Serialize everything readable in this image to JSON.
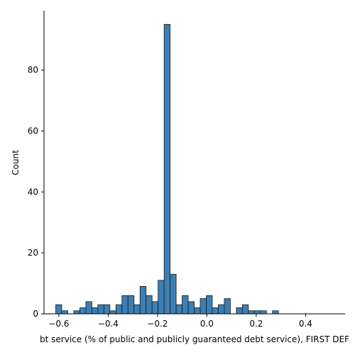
{
  "chart_data": {
    "type": "bar",
    "subtype": "histogram",
    "xlabel": "bt service (% of public and publicly guaranteed debt service), FIRST DEF",
    "ylabel": "Count",
    "xlim": [
      -0.66,
      0.56
    ],
    "ylim": [
      0,
      99.5
    ],
    "xticks": [
      -0.6,
      -0.4,
      -0.2,
      0.0,
      0.2,
      0.4
    ],
    "xtick_labels": [
      "−0.6",
      "−0.4",
      "−0.2",
      "0.0",
      "0.2",
      "0.4"
    ],
    "yticks": [
      0,
      20,
      40,
      60,
      80
    ],
    "ytick_labels": [
      "0",
      "20",
      "40",
      "60",
      "80"
    ],
    "grid": false,
    "spines": [
      "left",
      "bottom"
    ],
    "bar_color": "#3b7fb5",
    "edge_color": "#1a1a1a",
    "bin_width": 0.0244,
    "bins": [
      {
        "x0": -0.6125,
        "count": 3
      },
      {
        "x0": -0.5881,
        "count": 1
      },
      {
        "x0": -0.5637,
        "count": 0
      },
      {
        "x0": -0.5393,
        "count": 1
      },
      {
        "x0": -0.5149,
        "count": 2
      },
      {
        "x0": -0.4905,
        "count": 4
      },
      {
        "x0": -0.4661,
        "count": 2
      },
      {
        "x0": -0.4417,
        "count": 3
      },
      {
        "x0": -0.4173,
        "count": 3
      },
      {
        "x0": -0.3929,
        "count": 1
      },
      {
        "x0": -0.3685,
        "count": 3
      },
      {
        "x0": -0.3441,
        "count": 6
      },
      {
        "x0": -0.3197,
        "count": 6
      },
      {
        "x0": -0.2953,
        "count": 3
      },
      {
        "x0": -0.2709,
        "count": 9
      },
      {
        "x0": -0.2465,
        "count": 6
      },
      {
        "x0": -0.2221,
        "count": 4
      },
      {
        "x0": -0.1977,
        "count": 11
      },
      {
        "x0": -0.1733,
        "count": 95
      },
      {
        "x0": -0.1489,
        "count": 13
      },
      {
        "x0": -0.1245,
        "count": 3
      },
      {
        "x0": -0.1001,
        "count": 6
      },
      {
        "x0": -0.0757,
        "count": 4
      },
      {
        "x0": -0.0513,
        "count": 2
      },
      {
        "x0": -0.0269,
        "count": 5
      },
      {
        "x0": -0.0025,
        "count": 6
      },
      {
        "x0": 0.0219,
        "count": 2
      },
      {
        "x0": 0.0463,
        "count": 3
      },
      {
        "x0": 0.0707,
        "count": 5
      },
      {
        "x0": 0.0951,
        "count": 0
      },
      {
        "x0": 0.1195,
        "count": 2
      },
      {
        "x0": 0.1439,
        "count": 3
      },
      {
        "x0": 0.1683,
        "count": 1
      },
      {
        "x0": 0.1927,
        "count": 1
      },
      {
        "x0": 0.2171,
        "count": 1
      },
      {
        "x0": 0.2415,
        "count": 0
      },
      {
        "x0": 0.2659,
        "count": 1
      }
    ]
  }
}
